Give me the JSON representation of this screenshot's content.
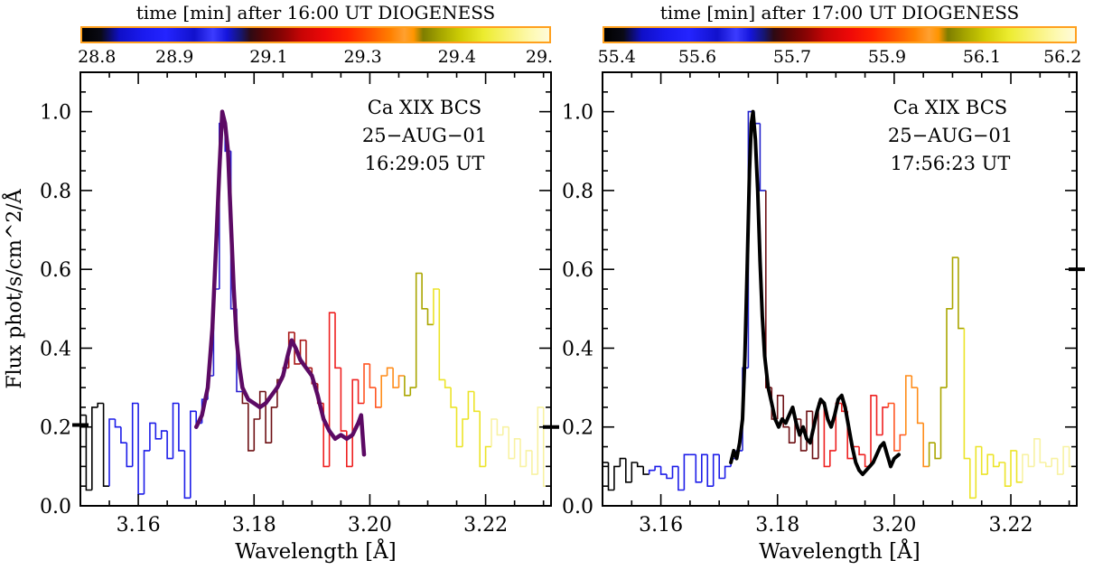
{
  "figure": {
    "background": "#ffffff"
  },
  "panels": [
    {
      "colorbar": {
        "title": "time [min] after 16:00 UT DIOGENESS",
        "tick_labels": [
          "28.8",
          "28.9",
          "29.1",
          "29.3",
          "29.4",
          "29."
        ]
      }
    },
    {
      "colorbar": {
        "title": "time [min] after 17:00 UT DIOGENESS",
        "tick_labels": [
          "55.4",
          "55.6",
          "55.7",
          "55.9",
          "56.1",
          "56.2"
        ]
      }
    }
  ],
  "colorbar_gradient": {
    "border_color": "#ffa01e",
    "stops": [
      [
        "#000000",
        0
      ],
      [
        "#0a0a14",
        4
      ],
      [
        "#0f0fc8",
        8
      ],
      [
        "#1a1aee",
        13
      ],
      [
        "#2424ff",
        18
      ],
      [
        "#1111cc",
        24
      ],
      [
        "#3c3cff",
        28
      ],
      [
        "#1515dd",
        31
      ],
      [
        "#16166e",
        34
      ],
      [
        "#2d0a14",
        36
      ],
      [
        "#5a0505",
        39
      ],
      [
        "#8b0404",
        43
      ],
      [
        "#c80505",
        47
      ],
      [
        "#ee0808",
        52
      ],
      [
        "#ff2200",
        57
      ],
      [
        "#ff5500",
        62
      ],
      [
        "#ff8000",
        66
      ],
      [
        "#ffa030",
        69
      ],
      [
        "#ff9500",
        71
      ],
      [
        "#7e7e00",
        73
      ],
      [
        "#a8a800",
        77
      ],
      [
        "#cdcd05",
        81
      ],
      [
        "#ecec30",
        86
      ],
      [
        "#f8f270",
        91
      ],
      [
        "#fdf9b0",
        96
      ],
      [
        "#fffbda",
        100
      ]
    ]
  },
  "chart_data": [
    {
      "type": "line",
      "subtype": "step-histogram-spectrum",
      "title": "",
      "xlabel": "Wavelength [Å]",
      "ylabel": "Flux phot/s/cm^2/Å",
      "xlim": [
        3.15,
        3.2313
      ],
      "ylim": [
        0,
        1.1
      ],
      "xticks": {
        "values": [
          3.16,
          3.18,
          3.2,
          3.22
        ],
        "labels": [
          "3.16",
          "3.18",
          "3.20",
          "3.22"
        ],
        "minor_step": 0.005
      },
      "yticks": {
        "values": [
          0,
          0.2,
          0.4,
          0.6,
          0.8,
          1.0
        ],
        "labels": [
          "0.0",
          "0.2",
          "0.4",
          "0.6",
          "0.8",
          "1.0"
        ],
        "minor_step": 0.05
      },
      "annotation": [
        "Ca XIX BCS",
        "25−AUG−01",
        "16:29:05 UT"
      ],
      "histogram": {
        "x_start": 3.15,
        "bin_width": 0.001,
        "values": [
          0.23,
          0.04,
          0.25,
          0.26,
          0.05,
          0.22,
          0.2,
          0.16,
          0.1,
          0.26,
          0.03,
          0.14,
          0.21,
          0.17,
          0.19,
          0.12,
          0.26,
          0.14,
          0.02,
          0.24,
          0.21,
          0.27,
          0.33,
          0.55,
          0.97,
          0.9,
          0.5,
          0.29,
          0.26,
          0.14,
          0.22,
          0.29,
          0.16,
          0.25,
          0.32,
          0.35,
          0.44,
          0.36,
          0.42,
          0.35,
          0.31,
          0.26,
          0.1,
          0.49,
          0.35,
          0.19,
          0.1,
          0.32,
          0.26,
          0.36,
          0.3,
          0.25,
          0.33,
          0.35,
          0.3,
          0.33,
          0.28,
          0.3,
          0.59,
          0.5,
          0.46,
          0.55,
          0.32,
          0.3,
          0.25,
          0.15,
          0.22,
          0.29,
          0.24,
          0.1,
          0.15,
          0.22,
          0.18,
          0.2,
          0.12,
          0.17,
          0.1,
          0.14,
          0.08,
          0.25,
          0.05
        ],
        "color_segments": [
          {
            "x0": 3.15,
            "x1": 3.1555,
            "color": "#000000"
          },
          {
            "x0": 3.1555,
            "x1": 3.172,
            "color": "#1c1ce8"
          },
          {
            "x0": 3.172,
            "x1": 3.178,
            "color": "#2a1fd0"
          },
          {
            "x0": 3.178,
            "x1": 3.185,
            "color": "#6e1014"
          },
          {
            "x0": 3.185,
            "x1": 3.192,
            "color": "#a81616"
          },
          {
            "x0": 3.192,
            "x1": 3.199,
            "color": "#ee2020"
          },
          {
            "x0": 3.199,
            "x1": 3.202,
            "color": "#ff5522"
          },
          {
            "x0": 3.202,
            "x1": 3.206,
            "color": "#ff8c1a"
          },
          {
            "x0": 3.206,
            "x1": 3.2115,
            "color": "#aaa600"
          },
          {
            "x0": 3.2115,
            "x1": 3.221,
            "color": "#ece428"
          },
          {
            "x0": 3.221,
            "x1": 3.2313,
            "color": "#f8f2a2"
          }
        ]
      },
      "overlay_curve": {
        "color": "#5c0a64",
        "width": 4.5,
        "points": [
          [
            3.17,
            0.2
          ],
          [
            3.171,
            0.23
          ],
          [
            3.172,
            0.3
          ],
          [
            3.1728,
            0.45
          ],
          [
            3.1735,
            0.68
          ],
          [
            3.174,
            0.85
          ],
          [
            3.1745,
            1.0
          ],
          [
            3.175,
            0.97
          ],
          [
            3.1755,
            0.9
          ],
          [
            3.176,
            0.72
          ],
          [
            3.1765,
            0.55
          ],
          [
            3.177,
            0.42
          ],
          [
            3.1775,
            0.35
          ],
          [
            3.178,
            0.3
          ],
          [
            3.179,
            0.27
          ],
          [
            3.18,
            0.26
          ],
          [
            3.181,
            0.25
          ],
          [
            3.182,
            0.26
          ],
          [
            3.183,
            0.28
          ],
          [
            3.184,
            0.3
          ],
          [
            3.185,
            0.33
          ],
          [
            3.1858,
            0.38
          ],
          [
            3.1865,
            0.42
          ],
          [
            3.1872,
            0.4
          ],
          [
            3.188,
            0.37
          ],
          [
            3.189,
            0.35
          ],
          [
            3.19,
            0.33
          ],
          [
            3.191,
            0.28
          ],
          [
            3.192,
            0.22
          ],
          [
            3.193,
            0.19
          ],
          [
            3.194,
            0.17
          ],
          [
            3.195,
            0.18
          ],
          [
            3.196,
            0.17
          ],
          [
            3.197,
            0.18
          ],
          [
            3.198,
            0.21
          ],
          [
            3.1985,
            0.23
          ],
          [
            3.199,
            0.13
          ]
        ]
      },
      "edge_markers": [
        {
          "side": "left",
          "y": 0.205
        },
        {
          "side": "right",
          "y": 0.2
        }
      ]
    },
    {
      "type": "line",
      "subtype": "step-histogram-spectrum",
      "title": "",
      "xlabel": "Wavelength [Å]",
      "ylabel": "",
      "xlim": [
        3.15,
        3.2313
      ],
      "ylim": [
        0,
        1.1
      ],
      "xticks": {
        "values": [
          3.16,
          3.18,
          3.2,
          3.22
        ],
        "labels": [
          "3.16",
          "3.18",
          "3.20",
          "3.22"
        ],
        "minor_step": 0.005
      },
      "yticks": {
        "values": [
          0,
          0.2,
          0.4,
          0.6,
          0.8,
          1.0
        ],
        "labels": [
          "0.0",
          "0.2",
          "0.4",
          "0.6",
          "0.8",
          "1.0"
        ],
        "minor_step": 0.05
      },
      "annotation": [
        "Ca XIX BCS",
        "25−AUG−01",
        "17:56:23 UT"
      ],
      "histogram": {
        "x_start": 3.15,
        "bin_width": 0.001,
        "values": [
          0.11,
          0.04,
          0.1,
          0.12,
          0.06,
          0.11,
          0.1,
          0.08,
          0.09,
          0.1,
          0.08,
          0.07,
          0.1,
          0.04,
          0.13,
          0.13,
          0.06,
          0.13,
          0.05,
          0.13,
          0.07,
          0.1,
          0.12,
          0.14,
          0.35,
          1.0,
          0.97,
          0.8,
          0.3,
          0.22,
          0.28,
          0.2,
          0.16,
          0.22,
          0.14,
          0.24,
          0.12,
          0.26,
          0.1,
          0.14,
          0.26,
          0.24,
          0.12,
          0.15,
          0.13,
          0.1,
          0.28,
          0.18,
          0.25,
          0.26,
          0.14,
          0.18,
          0.33,
          0.3,
          0.21,
          0.1,
          0.16,
          0.12,
          0.3,
          0.5,
          0.63,
          0.45,
          0.12,
          0.02,
          0.15,
          0.08,
          0.13,
          0.1,
          0.11,
          0.05,
          0.14,
          0.06,
          0.13,
          0.1,
          0.17,
          0.11,
          0.1,
          0.12,
          0.08,
          0.15,
          0.1
        ],
        "color_segments": [
          {
            "x0": 3.15,
            "x1": 3.158,
            "color": "#000000"
          },
          {
            "x0": 3.158,
            "x1": 3.174,
            "color": "#1c1ce8"
          },
          {
            "x0": 3.174,
            "x1": 3.178,
            "color": "#2222cc"
          },
          {
            "x0": 3.178,
            "x1": 3.188,
            "color": "#6e1014"
          },
          {
            "x0": 3.188,
            "x1": 3.199,
            "color": "#ee2020"
          },
          {
            "x0": 3.199,
            "x1": 3.202,
            "color": "#ff5522"
          },
          {
            "x0": 3.202,
            "x1": 3.206,
            "color": "#ff8c1a"
          },
          {
            "x0": 3.206,
            "x1": 3.212,
            "color": "#aaa600"
          },
          {
            "x0": 3.212,
            "x1": 3.222,
            "color": "#ece428"
          },
          {
            "x0": 3.222,
            "x1": 3.2313,
            "color": "#f8f2a2"
          }
        ]
      },
      "overlay_curve": {
        "color": "#000000",
        "width": 4,
        "points": [
          [
            3.172,
            0.11
          ],
          [
            3.1725,
            0.14
          ],
          [
            3.173,
            0.12
          ],
          [
            3.1735,
            0.16
          ],
          [
            3.174,
            0.22
          ],
          [
            3.1744,
            0.38
          ],
          [
            3.1748,
            0.6
          ],
          [
            3.1752,
            0.85
          ],
          [
            3.1755,
            0.97
          ],
          [
            3.1758,
            1.0
          ],
          [
            3.1762,
            0.93
          ],
          [
            3.1766,
            0.8
          ],
          [
            3.177,
            0.62
          ],
          [
            3.1774,
            0.48
          ],
          [
            3.1778,
            0.38
          ],
          [
            3.1784,
            0.3
          ],
          [
            3.179,
            0.26
          ],
          [
            3.1796,
            0.22
          ],
          [
            3.1802,
            0.2
          ],
          [
            3.1808,
            0.22
          ],
          [
            3.1814,
            0.21
          ],
          [
            3.182,
            0.23
          ],
          [
            3.1826,
            0.25
          ],
          [
            3.1832,
            0.21
          ],
          [
            3.1838,
            0.18
          ],
          [
            3.1844,
            0.2
          ],
          [
            3.185,
            0.17
          ],
          [
            3.1856,
            0.16
          ],
          [
            3.1862,
            0.2
          ],
          [
            3.1868,
            0.24
          ],
          [
            3.1874,
            0.27
          ],
          [
            3.188,
            0.26
          ],
          [
            3.1886,
            0.22
          ],
          [
            3.1892,
            0.2
          ],
          [
            3.1898,
            0.23
          ],
          [
            3.1904,
            0.27
          ],
          [
            3.191,
            0.28
          ],
          [
            3.1916,
            0.25
          ],
          [
            3.1922,
            0.2
          ],
          [
            3.1928,
            0.15
          ],
          [
            3.1934,
            0.11
          ],
          [
            3.194,
            0.09
          ],
          [
            3.1946,
            0.08
          ],
          [
            3.1952,
            0.09
          ],
          [
            3.1958,
            0.1
          ],
          [
            3.1964,
            0.11
          ],
          [
            3.197,
            0.13
          ],
          [
            3.1976,
            0.15
          ],
          [
            3.1982,
            0.16
          ],
          [
            3.1988,
            0.13
          ],
          [
            3.1994,
            0.1
          ],
          [
            3.2,
            0.12
          ],
          [
            3.2008,
            0.13
          ]
        ]
      },
      "edge_markers": [
        {
          "side": "right",
          "y": 0.6
        }
      ]
    }
  ]
}
